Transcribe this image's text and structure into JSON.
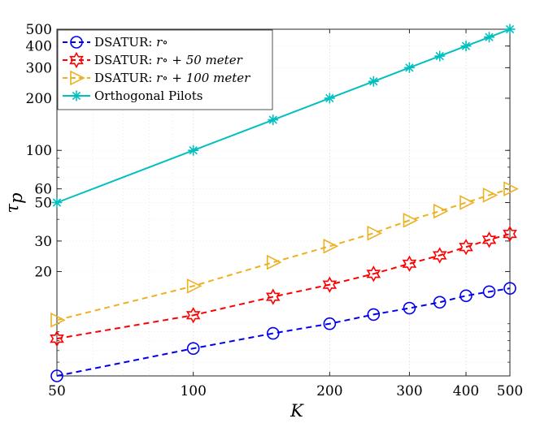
{
  "chart_data": {
    "type": "line",
    "xscale": "log",
    "yscale": "log",
    "xlabel": "K",
    "ylabel": "τ_p",
    "xlim": [
      50,
      500
    ],
    "ylim": [
      5,
      500
    ],
    "x_ticks": [
      50,
      100,
      200,
      300,
      400,
      500
    ],
    "y_ticks": [
      20,
      30,
      50,
      60,
      100,
      200,
      300,
      400,
      500
    ],
    "x": [
      50,
      100,
      150,
      200,
      250,
      300,
      350,
      400,
      450,
      500
    ],
    "series": [
      {
        "name": "DSATUR: r∘",
        "legend_prefix": "DSATUR: ",
        "legend_math": "r∘",
        "color": "#0000ee",
        "marker": "circle",
        "values": [
          5,
          7.2,
          8.8,
          10,
          11.3,
          12.3,
          13.3,
          14.5,
          15.3,
          16
        ]
      },
      {
        "name": "DSATUR: r∘ + 50 meter",
        "legend_prefix": "DSATUR: ",
        "legend_math": "r∘ + 50 meter",
        "color": "#ff0000",
        "marker": "hexagram",
        "values": [
          8.2,
          11.2,
          14.3,
          16.8,
          19.4,
          22.2,
          24.8,
          27.7,
          30.5,
          33
        ]
      },
      {
        "name": "DSATUR: r∘ + 100 meter",
        "legend_prefix": "DSATUR: ",
        "legend_math": "r∘ + 100 meter",
        "color": "#edb120",
        "marker": "triangle-right",
        "values": [
          10.5,
          16.5,
          22.6,
          28,
          33.3,
          39.5,
          44.6,
          50,
          55.2,
          60
        ]
      },
      {
        "name": "Orthogonal Pilots",
        "legend_prefix": "Orthogonal Pilots",
        "legend_math": "",
        "color": "#00bfbf",
        "marker": "asterisk",
        "values": [
          50,
          100,
          150,
          200,
          250,
          300,
          350,
          400,
          450,
          500
        ]
      }
    ],
    "legend_position": "top-left",
    "grid": true
  }
}
